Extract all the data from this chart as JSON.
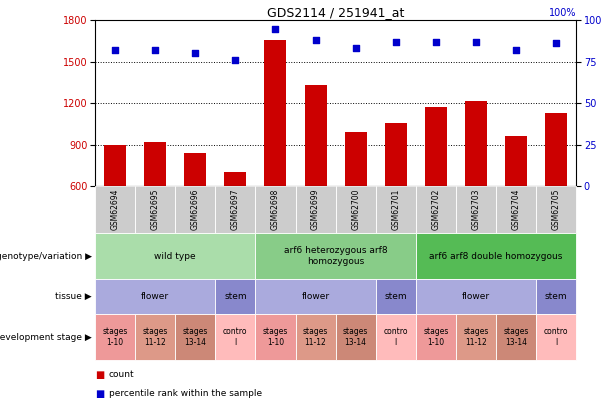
{
  "title": "GDS2114 / 251941_at",
  "samples": [
    "GSM62694",
    "GSM62695",
    "GSM62696",
    "GSM62697",
    "GSM62698",
    "GSM62699",
    "GSM62700",
    "GSM62701",
    "GSM62702",
    "GSM62703",
    "GSM62704",
    "GSM62705"
  ],
  "counts": [
    900,
    920,
    840,
    700,
    1655,
    1330,
    990,
    1060,
    1175,
    1220,
    960,
    1130
  ],
  "percentile": [
    82,
    82,
    80,
    76,
    95,
    88,
    83,
    87,
    87,
    87,
    82,
    86
  ],
  "ylim_left": [
    600,
    1800
  ],
  "ylim_right": [
    0,
    100
  ],
  "yticks_left": [
    600,
    900,
    1200,
    1500,
    1800
  ],
  "yticks_right": [
    0,
    25,
    50,
    75,
    100
  ],
  "bar_color": "#cc0000",
  "dot_color": "#0000cc",
  "geno_groups": [
    {
      "label": "wild type",
      "start": 0,
      "end": 3,
      "color": "#aaddaa"
    },
    {
      "label": "arf6 heterozygous arf8\nhomozygous",
      "start": 4,
      "end": 7,
      "color": "#88cc88"
    },
    {
      "label": "arf6 arf8 double homozygous",
      "start": 8,
      "end": 11,
      "color": "#55bb55"
    }
  ],
  "tissue_groups": [
    {
      "label": "flower",
      "start": 0,
      "end": 2,
      "color": "#aaaadd"
    },
    {
      "label": "stem",
      "start": 3,
      "end": 3,
      "color": "#8888cc"
    },
    {
      "label": "flower",
      "start": 4,
      "end": 6,
      "color": "#aaaadd"
    },
    {
      "label": "stem",
      "start": 7,
      "end": 7,
      "color": "#8888cc"
    },
    {
      "label": "flower",
      "start": 8,
      "end": 10,
      "color": "#aaaadd"
    },
    {
      "label": "stem",
      "start": 11,
      "end": 11,
      "color": "#8888cc"
    }
  ],
  "dev_groups": [
    {
      "label": "stages\n1-10",
      "start": 0,
      "end": 0,
      "color": "#ee9999"
    },
    {
      "label": "stages\n11-12",
      "start": 1,
      "end": 1,
      "color": "#dd9988"
    },
    {
      "label": "stages\n13-14",
      "start": 2,
      "end": 2,
      "color": "#cc8877"
    },
    {
      "label": "contro\nl",
      "start": 3,
      "end": 3,
      "color": "#ffbbbb"
    },
    {
      "label": "stages\n1-10",
      "start": 4,
      "end": 4,
      "color": "#ee9999"
    },
    {
      "label": "stages\n11-12",
      "start": 5,
      "end": 5,
      "color": "#dd9988"
    },
    {
      "label": "stages\n13-14",
      "start": 6,
      "end": 6,
      "color": "#cc8877"
    },
    {
      "label": "contro\nl",
      "start": 7,
      "end": 7,
      "color": "#ffbbbb"
    },
    {
      "label": "stages\n1-10",
      "start": 8,
      "end": 8,
      "color": "#ee9999"
    },
    {
      "label": "stages\n11-12",
      "start": 9,
      "end": 9,
      "color": "#dd9988"
    },
    {
      "label": "stages\n13-14",
      "start": 10,
      "end": 10,
      "color": "#cc8877"
    },
    {
      "label": "contro\nl",
      "start": 11,
      "end": 11,
      "color": "#ffbbbb"
    }
  ],
  "sample_bg_color": "#cccccc",
  "legend_count_color": "#cc0000",
  "legend_dot_color": "#0000cc"
}
